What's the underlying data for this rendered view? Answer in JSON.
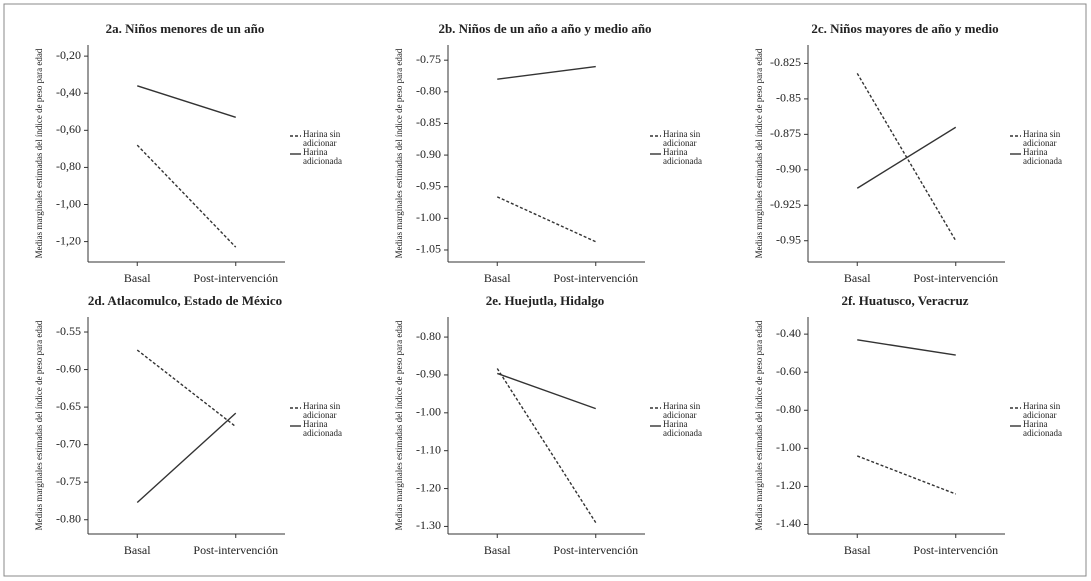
{
  "chart_data": [
    {
      "type": "line",
      "title": "2a. Niños menores de un año",
      "y_label": "Medias marginales estimadas del índice de peso para edad",
      "categories": [
        "Basal",
        "Post-intervención"
      ],
      "series": [
        {
          "name": "Harina sin adicionar",
          "color": "#333333",
          "style": "dashed",
          "values": [
            -0.68,
            -1.23
          ]
        },
        {
          "name": "Harina adicionada",
          "color": "#333333",
          "style": "solid",
          "values": [
            -0.36,
            -0.53
          ]
        }
      ],
      "ylim": [
        -1.31,
        -0.14
      ],
      "yticks": [
        {
          "value": -0.2,
          "label": "-0,20"
        },
        {
          "value": -0.4,
          "label": "-0,40"
        },
        {
          "value": -0.6,
          "label": "-0,60"
        },
        {
          "value": -0.8,
          "label": "-0,80"
        },
        {
          "value": -1.0,
          "label": "-1,00"
        },
        {
          "value": -1.2,
          "label": "-1,20"
        }
      ]
    },
    {
      "type": "line",
      "title": "2b. Niños de un año a año y medio año",
      "y_label": "Medias marginales estimadas del índice de peso para edad",
      "categories": [
        "Basal",
        "Post-intervención"
      ],
      "series": [
        {
          "name": "Harina sin adicionar",
          "color": "#333333",
          "style": "dashed",
          "values": [
            -0.966,
            -1.037
          ]
        },
        {
          "name": "Harina adicionada",
          "color": "#333333",
          "style": "solid",
          "values": [
            -0.78,
            -0.76
          ]
        }
      ],
      "ylim": [
        -1.069,
        -0.726
      ],
      "yticks": [
        {
          "value": -0.75,
          "label": "-0.75"
        },
        {
          "value": -0.8,
          "label": "-0.80"
        },
        {
          "value": -0.85,
          "label": "-0.85"
        },
        {
          "value": -0.9,
          "label": "-0.90"
        },
        {
          "value": -0.95,
          "label": "-0.95"
        },
        {
          "value": -1.0,
          "label": "-1.00"
        },
        {
          "value": -1.05,
          "label": "-1.05"
        }
      ]
    },
    {
      "type": "line",
      "title": "2c. Niños mayores de año y medio",
      "y_label": "Medias marginales estimadas del índice de peso para edad",
      "categories": [
        "Basal",
        "Post-intervención"
      ],
      "series": [
        {
          "name": "Harina sin adicionar",
          "color": "#333333",
          "style": "dashed",
          "values": [
            -0.832,
            -0.95
          ]
        },
        {
          "name": "Harina adicionada",
          "color": "#333333",
          "style": "solid",
          "values": [
            -0.913,
            -0.87
          ]
        }
      ],
      "ylim": [
        -0.965,
        -0.812
      ],
      "yticks": [
        -0.825,
        {
          "value": -0.85,
          "label": "-0.85"
        },
        -0.875,
        {
          "value": -0.9,
          "label": "-0.90"
        },
        -0.925,
        {
          "value": -0.95,
          "label": "-0.95"
        }
      ]
    },
    {
      "type": "line",
      "title": "2d. Atlacomulco, Estado de México",
      "y_label": "Medias marginales estimadas del índice de peso para edad",
      "categories": [
        "Basal",
        "Post-intervención"
      ],
      "series": [
        {
          "name": "Harina sin adicionar",
          "color": "#333333",
          "style": "dashed",
          "values": [
            -0.574,
            -0.676
          ]
        },
        {
          "name": "Harina adicionada",
          "color": "#333333",
          "style": "solid",
          "values": [
            -0.777,
            -0.658
          ]
        }
      ],
      "ylim": [
        -0.819,
        -0.53
      ],
      "yticks": [
        {
          "value": -0.55,
          "label": "-0.55"
        },
        {
          "value": -0.6,
          "label": "-0.60"
        },
        {
          "value": -0.65,
          "label": "-0.65"
        },
        {
          "value": -0.7,
          "label": "-0.70"
        },
        {
          "value": -0.75,
          "label": "-0.75"
        },
        {
          "value": -0.8,
          "label": "-0.80"
        }
      ]
    },
    {
      "type": "line",
      "title": "2e. Huejutla, Hidalgo",
      "y_label": "Medias marginales estimadas del índice de peso para edad",
      "categories": [
        "Basal",
        "Post-intervención"
      ],
      "series": [
        {
          "name": "Harina sin adicionar",
          "color": "#333333",
          "style": "dashed",
          "values": [
            -0.883,
            -1.29
          ]
        },
        {
          "name": "Harina adicionada",
          "color": "#333333",
          "style": "solid",
          "values": [
            -0.896,
            -0.989
          ]
        }
      ],
      "ylim": [
        -1.32,
        -0.747
      ],
      "yticks": [
        {
          "value": -0.8,
          "label": "-0.80"
        },
        {
          "value": -0.9,
          "label": "-0.90"
        },
        {
          "value": -1.0,
          "label": "-1.00"
        },
        {
          "value": -1.1,
          "label": "-1.10"
        },
        {
          "value": -1.2,
          "label": "-1.20"
        },
        {
          "value": -1.3,
          "label": "-1.30"
        }
      ]
    },
    {
      "type": "line",
      "title": "2f. Huatusco, Veracruz",
      "y_label": "Medias marginales estimadas del índice de peso para edad",
      "categories": [
        "Basal",
        "Post-intervención"
      ],
      "series": [
        {
          "name": "Harina sin adicionar",
          "color": "#333333",
          "style": "dashed",
          "values": [
            -1.04,
            -1.24
          ]
        },
        {
          "name": "Harina adicionada",
          "color": "#333333",
          "style": "solid",
          "values": [
            -0.43,
            -0.51
          ]
        }
      ],
      "ylim": [
        -1.45,
        -0.31
      ],
      "yticks": [
        {
          "value": -0.4,
          "label": "-0.40"
        },
        {
          "value": -0.6,
          "label": "-0.60"
        },
        {
          "value": -0.8,
          "label": "-0.80"
        },
        {
          "value": -1.0,
          "label": "-1.00"
        },
        {
          "value": -1.2,
          "label": "-1.20"
        },
        {
          "value": -1.4,
          "label": "-1.40"
        }
      ]
    }
  ]
}
